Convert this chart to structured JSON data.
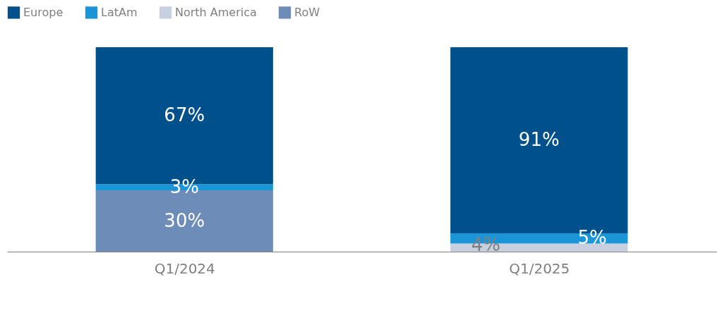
{
  "chart_data": {
    "type": "bar",
    "stacked": true,
    "categories": [
      "Q1/2024",
      "Q1/2025"
    ],
    "legend": "top left",
    "grid": false,
    "series": [
      {
        "name": "RoW",
        "color": "#6e8cb8",
        "values": [
          30,
          null
        ],
        "value_labels": [
          "30%",
          null
        ]
      },
      {
        "name": "North America",
        "color": "#c8d0e0",
        "values": [
          null,
          4
        ],
        "value_labels": [
          null,
          "4%"
        ]
      },
      {
        "name": "LatAm",
        "color": "#1a96d8",
        "values": [
          3,
          5
        ],
        "value_labels": [
          "3%",
          "5%"
        ]
      },
      {
        "name": "Europe",
        "color": "#00508c",
        "values": [
          67,
          91
        ],
        "value_labels": [
          "67%",
          "91%"
        ]
      }
    ]
  }
}
